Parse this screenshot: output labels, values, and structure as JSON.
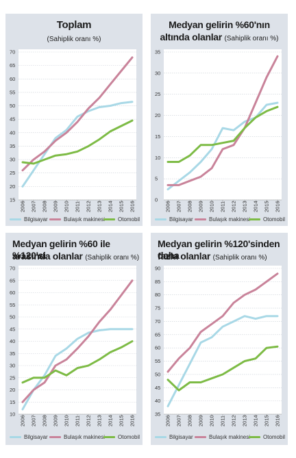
{
  "colors": {
    "bilgisayar": "#a8d8e6",
    "bulasik": "#c9839a",
    "otomobil": "#7dbb45",
    "panel_bg": "#dde2e9"
  },
  "legend": {
    "bilgisayar": "Bilgisayar",
    "bulasik": "Bulaşık makinesi",
    "otomobil": "Otomobil"
  },
  "panels": [
    {
      "title_a": "Toplam",
      "title_b": "",
      "subtitle": "(Sahiplik oranı %)"
    },
    {
      "title_a": "Medyan gelirin %60'nın",
      "title_b": "altında olanlar",
      "subtitle": "(Sahiplik oranı %)"
    },
    {
      "title_a": "Medyan gelirin %60 ile %120'si",
      "title_b": "arasında olanlar",
      "subtitle": "(Sahiplik oranı %)"
    },
    {
      "title_a": "Medyan gelirin %120'sinden daha",
      "title_b": "fazla olanlar",
      "subtitle": "(Sahiplik oranı %)"
    }
  ],
  "chart_data": [
    {
      "type": "line",
      "title": "Toplam",
      "subtitle": "(Sahiplik oranı %)",
      "x": [
        "2006",
        "2007",
        "2008",
        "2009",
        "2010",
        "2011",
        "2012",
        "2013",
        "2014",
        "2015",
        "2016"
      ],
      "ylim": [
        15,
        70
      ],
      "yticks": [
        15,
        20,
        25,
        30,
        35,
        40,
        45,
        50,
        55,
        60,
        65,
        70
      ],
      "grid": true,
      "series": [
        {
          "name": "Bilgisayar",
          "key": "bilgisayar",
          "values": [
            20,
            26,
            32,
            38,
            41,
            46,
            48,
            49.5,
            50,
            51,
            51.5
          ]
        },
        {
          "name": "Bulaşık makinesi",
          "key": "bulasik",
          "values": [
            26,
            30,
            33,
            37,
            40,
            44,
            49,
            53,
            58,
            63,
            68
          ]
        },
        {
          "name": "Otomobil",
          "key": "otomobil",
          "values": [
            29,
            28.5,
            30,
            31.5,
            32,
            33,
            35,
            37.5,
            40.5,
            42.5,
            44.5
          ]
        }
      ]
    },
    {
      "type": "line",
      "title": "Medyan gelirin %60'nın altında olanlar",
      "subtitle": "(Sahiplik oranı %)",
      "x": [
        "2006",
        "2007",
        "2008",
        "2009",
        "2010",
        "2011",
        "2012",
        "2013",
        "2014",
        "2015",
        "2016"
      ],
      "ylim": [
        0,
        35
      ],
      "yticks": [
        0,
        5,
        10,
        15,
        20,
        25,
        30,
        35
      ],
      "grid": true,
      "series": [
        {
          "name": "Bilgisayar",
          "key": "bilgisayar",
          "values": [
            2.5,
            4.5,
            6.5,
            9,
            12,
            17,
            16.5,
            18.5,
            19.5,
            22.5,
            23
          ]
        },
        {
          "name": "Bulaşık makinesi",
          "key": "bulasik",
          "values": [
            3.5,
            3.5,
            4.5,
            5.5,
            7.5,
            12,
            13,
            17,
            23,
            29,
            34
          ]
        },
        {
          "name": "Otomobil",
          "key": "otomobil",
          "values": [
            9,
            9,
            10.5,
            13,
            13,
            13.5,
            14,
            17,
            19.5,
            21,
            22
          ]
        }
      ]
    },
    {
      "type": "line",
      "title": "Medyan gelirin %60 ile %120'si arasında olanlar",
      "subtitle": "(Sahiplik oranı %)",
      "x": [
        "2006",
        "2007",
        "2008",
        "2009",
        "2010",
        "2011",
        "2012",
        "2013",
        "2014",
        "2015",
        "2016"
      ],
      "ylim": [
        10,
        70
      ],
      "yticks": [
        10,
        15,
        20,
        25,
        30,
        35,
        40,
        45,
        50,
        55,
        60,
        65,
        70
      ],
      "grid": true,
      "series": [
        {
          "name": "Bilgisayar",
          "key": "bilgisayar",
          "values": [
            12,
            20,
            26,
            34,
            37,
            41,
            43.5,
            44.5,
            45,
            45,
            45
          ]
        },
        {
          "name": "Bulaşık makinesi",
          "key": "bulasik",
          "values": [
            15,
            20,
            23,
            30,
            32.5,
            37,
            42,
            48,
            53,
            59,
            65
          ]
        },
        {
          "name": "Otomobil",
          "key": "otomobil",
          "values": [
            23,
            25,
            25,
            28,
            26,
            29,
            30,
            32.5,
            35.5,
            37.5,
            40
          ]
        }
      ]
    },
    {
      "type": "line",
      "title": "Medyan gelirin %120'sinden daha fazla olanlar",
      "subtitle": "(Sahiplik oranı %)",
      "x": [
        "2006",
        "2007",
        "2008",
        "2009",
        "2010",
        "2011",
        "2012",
        "2013",
        "2014",
        "2015",
        "2016"
      ],
      "ylim": [
        35,
        90
      ],
      "yticks": [
        35,
        40,
        45,
        50,
        55,
        60,
        65,
        70,
        75,
        80,
        85,
        90
      ],
      "grid": true,
      "series": [
        {
          "name": "Bilgisayar",
          "key": "bilgisayar",
          "values": [
            38,
            46,
            54,
            62,
            64,
            68,
            70,
            72,
            71,
            72,
            72
          ]
        },
        {
          "name": "Bulaşık makinesi",
          "key": "bulasik",
          "values": [
            51,
            56,
            60,
            66,
            69,
            72,
            77,
            80,
            82,
            85,
            88
          ]
        },
        {
          "name": "Otomobil",
          "key": "otomobil",
          "values": [
            48,
            44,
            47,
            47,
            48.5,
            50,
            52.5,
            55,
            56,
            60,
            60.5
          ]
        }
      ]
    }
  ]
}
